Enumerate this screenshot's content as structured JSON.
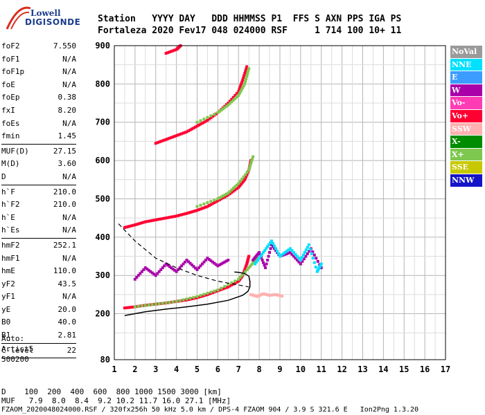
{
  "logo": {
    "line1": "Lowell",
    "line2": "DIGISONDE"
  },
  "header": {
    "line1": "Station   YYYY DAY   DDD HHMMSS P1  FFS S AXN PPS IGA PS",
    "line2": "Fortaleza 2020 Fev17 048 024000 RSF     1 714 100 10+ 11"
  },
  "params": {
    "group1": [
      {
        "k": "foF2",
        "v": "7.550"
      },
      {
        "k": "foF1",
        "v": "N/A"
      },
      {
        "k": "foF1p",
        "v": "N/A"
      },
      {
        "k": "foE",
        "v": "N/A"
      },
      {
        "k": "foEp",
        "v": "0.38"
      },
      {
        "k": "fxI",
        "v": "8.20"
      },
      {
        "k": "foEs",
        "v": "N/A"
      },
      {
        "k": "fmin",
        "v": "1.45"
      }
    ],
    "group2": [
      {
        "k": "MUF(D)",
        "v": "27.15"
      },
      {
        "k": "M(D)",
        "v": "3.60"
      },
      {
        "k": "D",
        "v": "N/A"
      }
    ],
    "group3": [
      {
        "k": "h`F",
        "v": "210.0"
      },
      {
        "k": "h`F2",
        "v": "210.0"
      },
      {
        "k": "h`E",
        "v": "N/A"
      },
      {
        "k": "h`Es",
        "v": "N/A"
      }
    ],
    "group4": [
      {
        "k": "hmF2",
        "v": "252.1"
      },
      {
        "k": "hmF1",
        "v": "N/A"
      },
      {
        "k": "hmE",
        "v": "110.0"
      },
      {
        "k": "yF2",
        "v": "43.5"
      },
      {
        "k": "yF1",
        "v": "N/A"
      },
      {
        "k": "yE",
        "v": "20.0"
      },
      {
        "k": "B0",
        "v": "40.0"
      },
      {
        "k": "B1",
        "v": "2.81"
      }
    ],
    "group5": [
      {
        "k": "C-level",
        "v": "22"
      }
    ]
  },
  "auto": {
    "l1": "Auto:",
    "l2": "Artist5",
    "l3": "500200"
  },
  "legend": [
    {
      "label": "NoVal",
      "color": "#9a9a9a"
    },
    {
      "label": "NNE",
      "color": "#00e0ff"
    },
    {
      "label": "E",
      "color": "#3c9dff"
    },
    {
      "label": "W",
      "color": "#aa00aa"
    },
    {
      "label": "Vo-",
      "color": "#ff3cb4"
    },
    {
      "label": "Vo+",
      "color": "#ff0032"
    },
    {
      "label": "SSW",
      "color": "#ffb0b0"
    },
    {
      "label": "X-",
      "color": "#008c00"
    },
    {
      "label": "X+",
      "color": "#7ec850"
    },
    {
      "label": "SSE",
      "color": "#c8c800"
    },
    {
      "label": "NNW",
      "color": "#1414c8"
    }
  ],
  "bottom": {
    "d_line": "D    100  200  400  600  800 1000 1500 3000 [km]",
    "muf_line": "MUF   7.9  8.0  8.4  9.2 10.2 11.7 16.0 27.1 [MHz]",
    "footer": "FZAOM_2020048024000.RSF / 320fx256h 50 kHz 5.0 km / DPS-4 FZAOM 904 / 3.9 S 321.6 E   Ion2Png 1.3.20"
  },
  "chart_data": {
    "type": "scatter",
    "title": "",
    "xlabel": "",
    "ylabel": "",
    "xlim": [
      1,
      17
    ],
    "ylim": [
      80,
      900
    ],
    "x_ticks": [
      1,
      2,
      3,
      4,
      5,
      6,
      7,
      8,
      9,
      10,
      11,
      12,
      13,
      14,
      15,
      16,
      17
    ],
    "y_ticks": [
      80,
      200,
      300,
      400,
      500,
      600,
      700,
      800,
      900
    ],
    "grid": true,
    "legend_position": "right",
    "traces": [
      {
        "name": "F2 trace (1st hop)",
        "series": "Vo+",
        "x": [
          1.5,
          2,
          2.5,
          3,
          3.5,
          4,
          4.5,
          5,
          5.5,
          6,
          6.5,
          7,
          7.2,
          7.4,
          7.5
        ],
        "y": [
          215,
          218,
          222,
          225,
          228,
          232,
          236,
          242,
          250,
          260,
          270,
          285,
          300,
          330,
          350
        ]
      },
      {
        "name": "F2 trace (2nd hop)",
        "series": "Vo+",
        "x": [
          1.5,
          2,
          2.5,
          3,
          3.5,
          4,
          4.5,
          5,
          5.5,
          6,
          6.5,
          7,
          7.3,
          7.5,
          7.6
        ],
        "y": [
          425,
          432,
          440,
          445,
          450,
          455,
          462,
          470,
          480,
          495,
          510,
          530,
          550,
          575,
          600
        ]
      },
      {
        "name": "F2 trace (3rd hop)",
        "series": "Vo+",
        "x": [
          3,
          3.5,
          4,
          4.5,
          5,
          5.5,
          6,
          6.5,
          7,
          7.2,
          7.4
        ],
        "y": [
          645,
          655,
          665,
          675,
          690,
          705,
          725,
          750,
          780,
          810,
          845
        ]
      },
      {
        "name": "F2 trace (4th hop)",
        "series": "Vo+",
        "x": [
          3.5,
          4,
          4.2
        ],
        "y": [
          880,
          890,
          900
        ]
      },
      {
        "name": "X trace",
        "series": "X+",
        "x": [
          2,
          3,
          4,
          5,
          6,
          7,
          7.5,
          7.9
        ],
        "y": [
          218,
          225,
          232,
          245,
          262,
          290,
          320,
          345
        ]
      },
      {
        "name": "X trace 2",
        "series": "X+",
        "x": [
          5,
          6,
          6.5,
          7,
          7.5,
          7.7
        ],
        "y": [
          480,
          500,
          515,
          540,
          575,
          610
        ]
      },
      {
        "name": "X trace 3",
        "series": "X+",
        "x": [
          5,
          6,
          6.5,
          7,
          7.3,
          7.5
        ],
        "y": [
          700,
          725,
          745,
          770,
          800,
          840
        ]
      },
      {
        "name": "spread W",
        "series": "W",
        "x": [
          2,
          2.5,
          3,
          3.5,
          4,
          4.5,
          5,
          5.5,
          6,
          6.5
        ],
        "y": [
          290,
          320,
          300,
          330,
          310,
          340,
          315,
          345,
          325,
          340
        ]
      },
      {
        "name": "spread high",
        "series": "W",
        "x": [
          7.7,
          8,
          8.3,
          8.6,
          9,
          9.5,
          10,
          10.5,
          11
        ],
        "y": [
          340,
          360,
          320,
          380,
          350,
          360,
          330,
          370,
          320
        ]
      },
      {
        "name": "spread NNE",
        "series": "NNE",
        "x": [
          7.8,
          8.2,
          8.6,
          9,
          9.5,
          10,
          10.4,
          10.8,
          11
        ],
        "y": [
          330,
          360,
          390,
          350,
          370,
          340,
          380,
          310,
          330
        ]
      },
      {
        "name": "SSW patch",
        "series": "SSW",
        "x": [
          7.6,
          7.9,
          8.2,
          8.5,
          8.8,
          9.1
        ],
        "y": [
          250,
          245,
          252,
          248,
          250,
          246
        ]
      }
    ],
    "profile": {
      "x": [
        1.5,
        2.5,
        3.5,
        4.5,
        5.5,
        6.5,
        7.2,
        7.45,
        7.55,
        7.55,
        7.5,
        7.3,
        7.0,
        6.8
      ],
      "y": [
        195,
        205,
        212,
        218,
        225,
        235,
        248,
        258,
        270,
        285,
        298,
        305,
        308,
        309
      ]
    },
    "model_curve": {
      "x": [
        1.2,
        2,
        3,
        4,
        5,
        6,
        6.5,
        7,
        7.5
      ],
      "y": [
        435,
        390,
        345,
        320,
        300,
        285,
        280,
        275,
        270
      ]
    }
  }
}
